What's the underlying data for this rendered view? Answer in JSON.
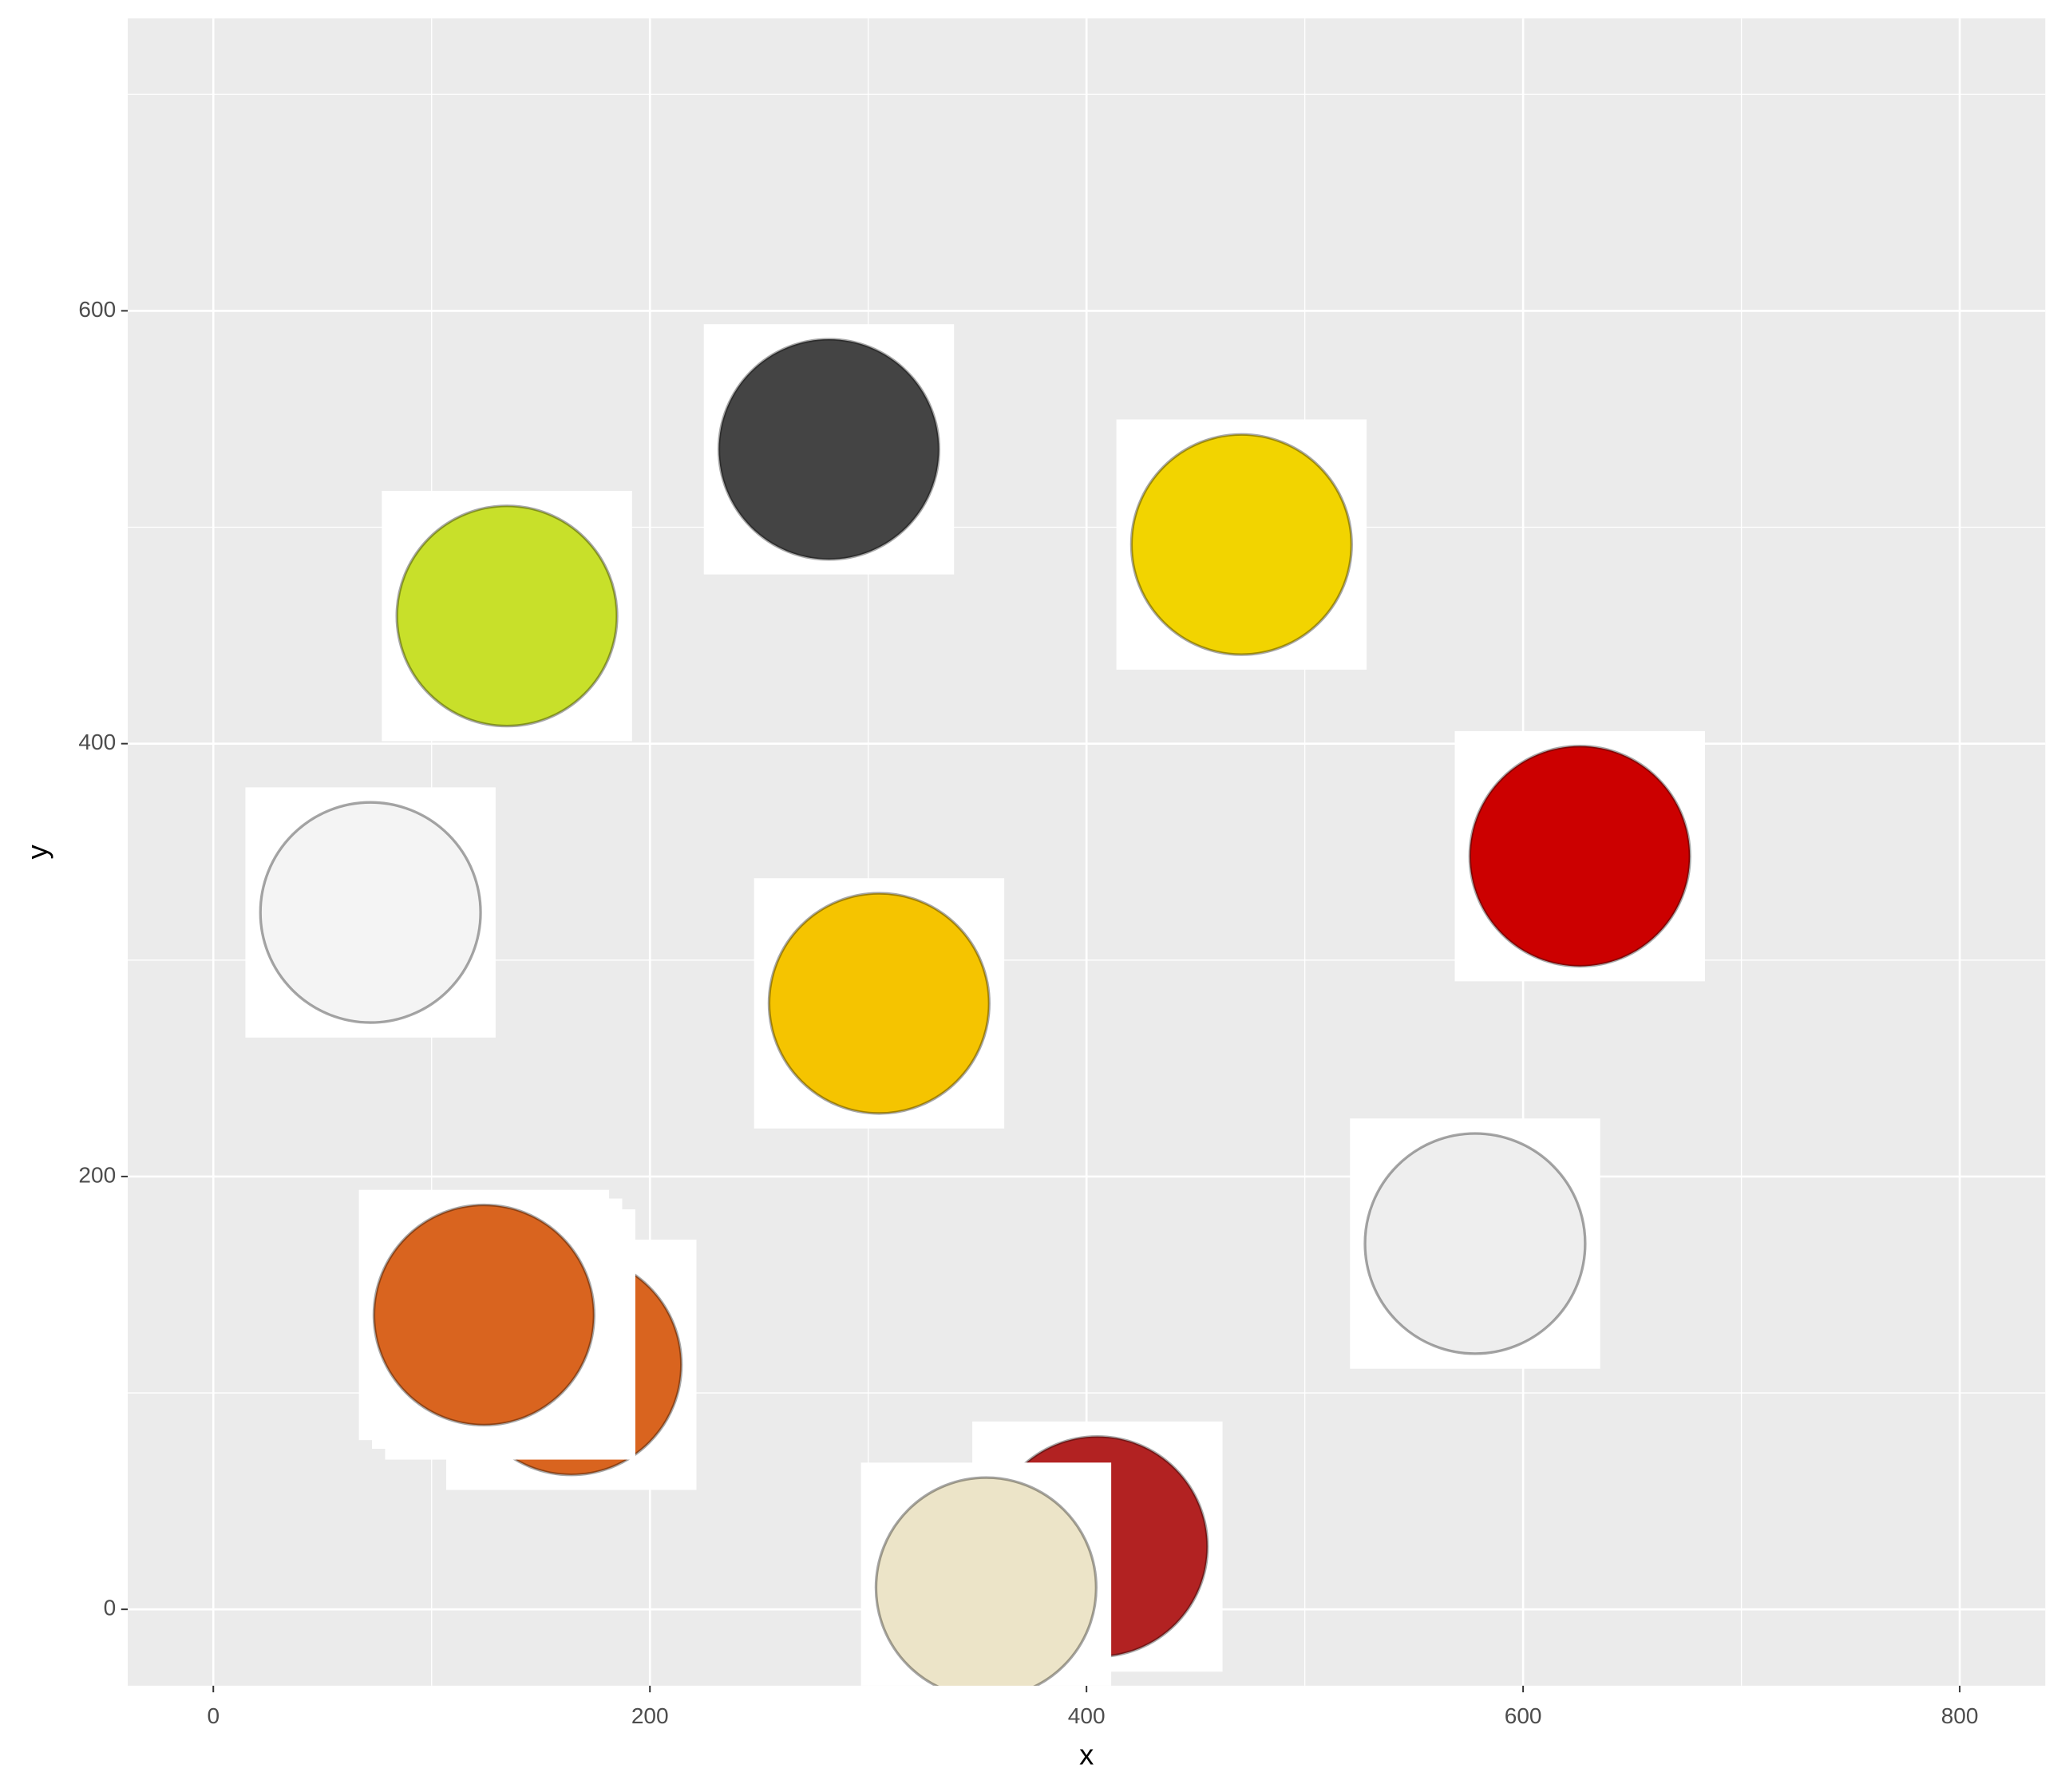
{
  "chart_data": {
    "type": "scatter",
    "x_label": "x",
    "y_label": "y",
    "x": [
      282,
      134.5,
      471,
      72,
      305,
      626,
      578,
      164,
      136,
      130,
      124,
      405,
      354
    ],
    "values": [
      536,
      459,
      492,
      322,
      280,
      348,
      169,
      113,
      127,
      132,
      136,
      29,
      10
    ],
    "colors": [
      "#444444",
      "#c8e02a",
      "#f2d400",
      "#f4f4f4",
      "#f5c400",
      "#cc0000",
      "#eeeeee",
      "#d9641f",
      "#d9641f",
      "#d9641f",
      "#d9641f",
      "#b22222",
      "#ece4c8"
    ],
    "xlim": [
      -39.2,
      839.2
    ],
    "ylim": [
      -35.3,
      735.1
    ],
    "xticks": [
      0,
      200,
      400,
      600,
      800
    ],
    "yticks": [
      0,
      200,
      400,
      600
    ],
    "grid": true,
    "minor_grid": true,
    "panel_color": "#ebebeb"
  }
}
